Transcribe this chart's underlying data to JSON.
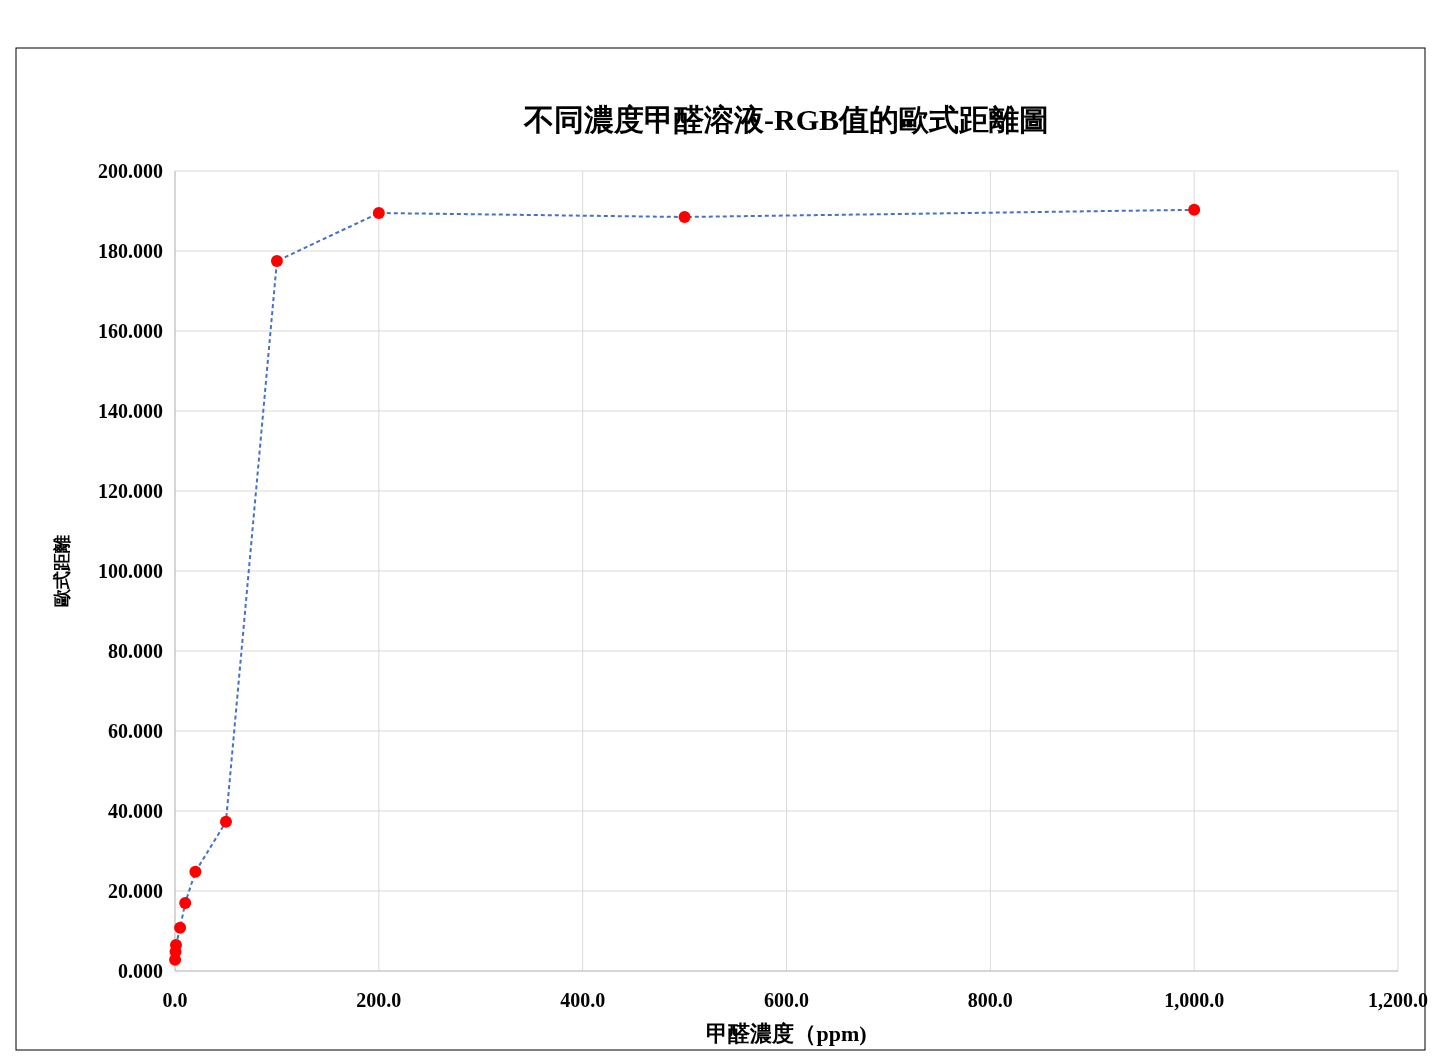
{
  "chart_data": {
    "type": "line",
    "title": "不同濃度甲醛溶液-RGB值的歐式距離圖",
    "xlabel": "甲醛濃度（ppm)",
    "ylabel": "歐式距離",
    "series": [
      {
        "color": "#4472c4",
        "colors": [
          "#ff0000",
          "#ff0000",
          "#ff0000",
          "#ff0000",
          "#ff0000",
          "#ff0000",
          "#ff0000",
          "#ff0000",
          "#ff0000",
          "#ff0000",
          "#ff0000"
        ],
        "x": [
          0.1,
          0.5,
          1,
          5,
          10,
          20,
          50,
          100,
          200,
          500,
          1000
        ],
        "values": [
          2.8,
          4.8,
          6.5,
          10.8,
          17,
          24.8,
          37.3,
          177.5,
          189.5,
          188.5,
          190.3
        ]
      }
    ],
    "xlim": [
      0,
      1200
    ],
    "xticks": [
      {
        "value": 0,
        "label": "0.0"
      },
      {
        "value": 200,
        "label": "200.0"
      },
      {
        "value": 400,
        "label": "400.0"
      },
      {
        "value": 600,
        "label": "600.0"
      },
      {
        "value": 800,
        "label": "800.0"
      },
      {
        "value": 1000,
        "label": "1,000.0"
      },
      {
        "value": 1200,
        "label": "1,200.0"
      }
    ],
    "ylim": [
      0,
      200
    ],
    "yticks": [
      {
        "value": 0,
        "label": "0.000"
      },
      {
        "value": 20,
        "label": "20.000"
      },
      {
        "value": 40,
        "label": "40.000"
      },
      {
        "value": 60,
        "label": "60.000"
      },
      {
        "value": 80,
        "label": "80.000"
      },
      {
        "value": 100,
        "label": "100.000"
      },
      {
        "value": 120,
        "label": "120.000"
      },
      {
        "value": 140,
        "label": "140.000"
      },
      {
        "value": 160,
        "label": "160.000"
      },
      {
        "value": 180,
        "label": "180.000"
      },
      {
        "value": 200,
        "label": "200.000"
      }
    ],
    "grid": true,
    "marker": "circle",
    "line_style": "dashed"
  }
}
